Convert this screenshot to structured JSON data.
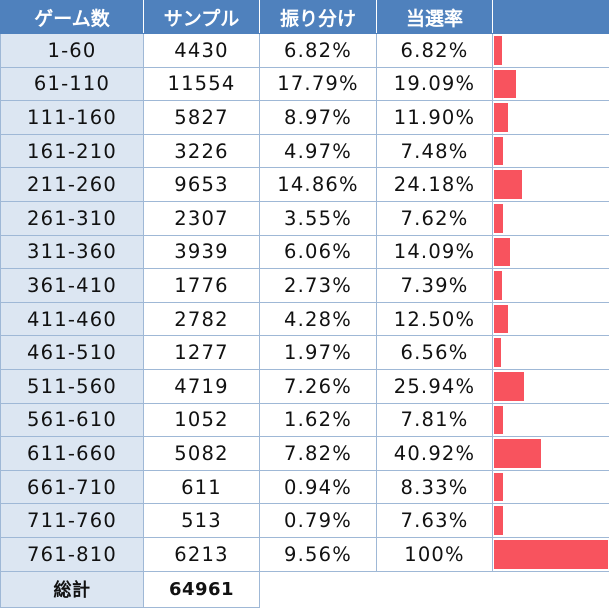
{
  "chart_data": {
    "type": "table",
    "columns": [
      "ゲーム数",
      "サンプル",
      "振り分け",
      "当選率",
      ""
    ],
    "rows": [
      {
        "range": "1-60",
        "sample": "4430",
        "ratio": "6.82%",
        "rate": "6.82%",
        "rate_value": 6.82
      },
      {
        "range": "61-110",
        "sample": "11554",
        "ratio": "17.79%",
        "rate": "19.09%",
        "rate_value": 19.09
      },
      {
        "range": "111-160",
        "sample": "5827",
        "ratio": "8.97%",
        "rate": "11.90%",
        "rate_value": 11.9
      },
      {
        "range": "161-210",
        "sample": "3226",
        "ratio": "4.97%",
        "rate": "7.48%",
        "rate_value": 7.48
      },
      {
        "range": "211-260",
        "sample": "9653",
        "ratio": "14.86%",
        "rate": "24.18%",
        "rate_value": 24.18
      },
      {
        "range": "261-310",
        "sample": "2307",
        "ratio": "3.55%",
        "rate": "7.62%",
        "rate_value": 7.62
      },
      {
        "range": "311-360",
        "sample": "3939",
        "ratio": "6.06%",
        "rate": "14.09%",
        "rate_value": 14.09
      },
      {
        "range": "361-410",
        "sample": "1776",
        "ratio": "2.73%",
        "rate": "7.39%",
        "rate_value": 7.39
      },
      {
        "range": "411-460",
        "sample": "2782",
        "ratio": "4.28%",
        "rate": "12.50%",
        "rate_value": 12.5
      },
      {
        "range": "461-510",
        "sample": "1277",
        "ratio": "1.97%",
        "rate": "6.56%",
        "rate_value": 6.56
      },
      {
        "range": "511-560",
        "sample": "4719",
        "ratio": "7.26%",
        "rate": "25.94%",
        "rate_value": 25.94
      },
      {
        "range": "561-610",
        "sample": "1052",
        "ratio": "1.62%",
        "rate": "7.81%",
        "rate_value": 7.81
      },
      {
        "range": "611-660",
        "sample": "5082",
        "ratio": "7.82%",
        "rate": "40.92%",
        "rate_value": 40.92
      },
      {
        "range": "661-710",
        "sample": "611",
        "ratio": "0.94%",
        "rate": "8.33%",
        "rate_value": 8.33
      },
      {
        "range": "711-760",
        "sample": "513",
        "ratio": "0.79%",
        "rate": "7.63%",
        "rate_value": 7.63
      },
      {
        "range": "761-810",
        "sample": "6213",
        "ratio": "9.56%",
        "rate": "100%",
        "rate_value": 100
      }
    ],
    "total": {
      "label": "総計",
      "value": "64961"
    },
    "bar_max": 100
  },
  "colors": {
    "header_bg": "#4f81bd",
    "header_text": "#ffffff",
    "range_bg": "#dce6f2",
    "grid": "#9fb8d6",
    "bar": "#f8535e"
  }
}
